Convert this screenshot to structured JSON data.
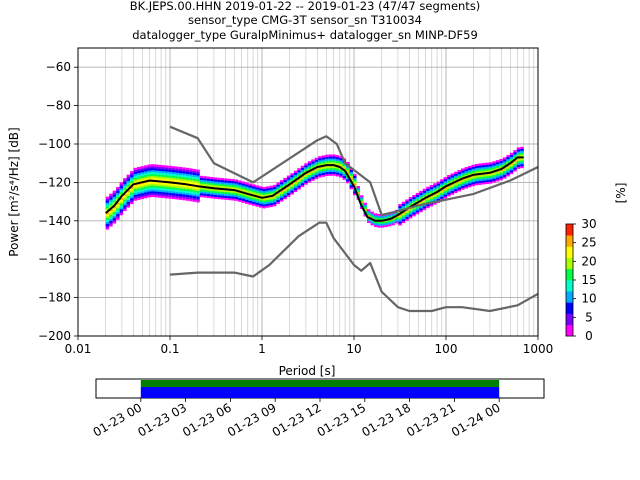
{
  "title_lines": [
    "BK.JEPS.00.HHN   2019-01-22 -- 2019-01-23  (47/47 segments)",
    "sensor_type CMG-3T sensor_sn T310034",
    "datalogger_type GuralpMinimus+ datalogger_sn MINP-DF59"
  ],
  "chart_data": [
    {
      "type": "heatmap",
      "title": "",
      "xlabel": "Period [s]",
      "ylabel": "Power [m²/s⁴/Hz] [dB]",
      "xscale": "log",
      "xlim": [
        0.01,
        1000
      ],
      "ylim": [
        -200,
        -50
      ],
      "x_ticks": [
        0.01,
        0.1,
        1,
        10,
        100,
        1000
      ],
      "x_tick_labels": [
        "0.01",
        "0.1",
        "1",
        "10",
        "100",
        "1000"
      ],
      "y_ticks": [
        -200,
        -180,
        -160,
        -140,
        -120,
        -100,
        -80,
        -60
      ],
      "y_tick_labels": [
        "−200",
        "−180",
        "−160",
        "−140",
        "−120",
        "−100",
        "−80",
        "−60"
      ],
      "grid": true,
      "colorbar": {
        "label": "[%]",
        "min": 0,
        "max": 30,
        "ticks": [
          0,
          5,
          10,
          15,
          20,
          25,
          30
        ],
        "colors": [
          "#ff00ff",
          "#7700ff",
          "#0000ff",
          "#00aaff",
          "#00ffcc",
          "#00ff44",
          "#aaff00",
          "#ffff00",
          "#ffaa00",
          "#ff2200"
        ]
      },
      "series": [
        {
          "style": "black",
          "x": [
            0.02,
            0.025,
            0.03,
            0.04,
            0.06,
            0.1,
            0.15,
            0.2,
            0.3,
            0.5,
            0.7,
            1.0,
            1.3,
            2,
            3,
            4,
            5,
            6,
            7,
            8,
            10,
            12,
            14,
            17,
            20,
            25,
            30,
            40,
            60,
            80,
            100,
            150,
            200,
            300,
            400,
            500,
            600,
            700
          ],
          "y": [
            -136,
            -132,
            -127,
            -121,
            -119,
            -120,
            -121,
            -122,
            -123,
            -124,
            -126,
            -128,
            -127,
            -121,
            -115,
            -112,
            -111,
            -111,
            -112,
            -114,
            -122,
            -132,
            -138,
            -140,
            -140,
            -139,
            -137,
            -133,
            -128,
            -125,
            -122,
            -118,
            -116,
            -115,
            -113,
            -110,
            -107,
            -107
          ]
        },
        {
          "style": "gray",
          "x": [
            0.1,
            0.2,
            0.3,
            0.8,
            4,
            5,
            6.5,
            8,
            15,
            20,
            30,
            50,
            200,
            500,
            1000
          ],
          "y": [
            -91,
            -97,
            -110,
            -120,
            -98,
            -96,
            -100,
            -110,
            -120,
            -137,
            -135,
            -132,
            -126,
            -119,
            -112
          ]
        },
        {
          "style": "gray",
          "x": [
            0.1,
            0.2,
            0.5,
            0.8,
            1.2,
            2.5,
            4.2,
            5,
            6,
            10,
            12,
            15,
            20,
            30,
            40,
            70,
            100,
            150,
            300,
            600,
            1000
          ],
          "y": [
            -168,
            -167,
            -167,
            -169,
            -163,
            -148,
            -141,
            -141,
            -149,
            -163,
            -166,
            -162,
            -177,
            -185,
            -187,
            -187,
            -185,
            -185,
            -187,
            -184,
            -178
          ]
        }
      ]
    },
    {
      "type": "bar",
      "title": "",
      "xlabel": "",
      "ylabel": "",
      "x_tick_labels": [
        "01-23 00",
        "01-23 03",
        "01-23 06",
        "01-23 09",
        "01-23 12",
        "01-23 15",
        "01-23 18",
        "01-23 21",
        "01-24 00"
      ],
      "xlim": [
        "2019-01-22 21:00",
        "2019-01-24 03:00"
      ],
      "coverage": [
        {
          "start": "2019-01-23 00:00",
          "end": "2019-01-24 00:00",
          "color": "#0000ff"
        }
      ],
      "data_coverage": [
        {
          "start": "2019-01-23 00:00",
          "end": "2019-01-24 00:00",
          "color": "#008000"
        }
      ]
    }
  ]
}
